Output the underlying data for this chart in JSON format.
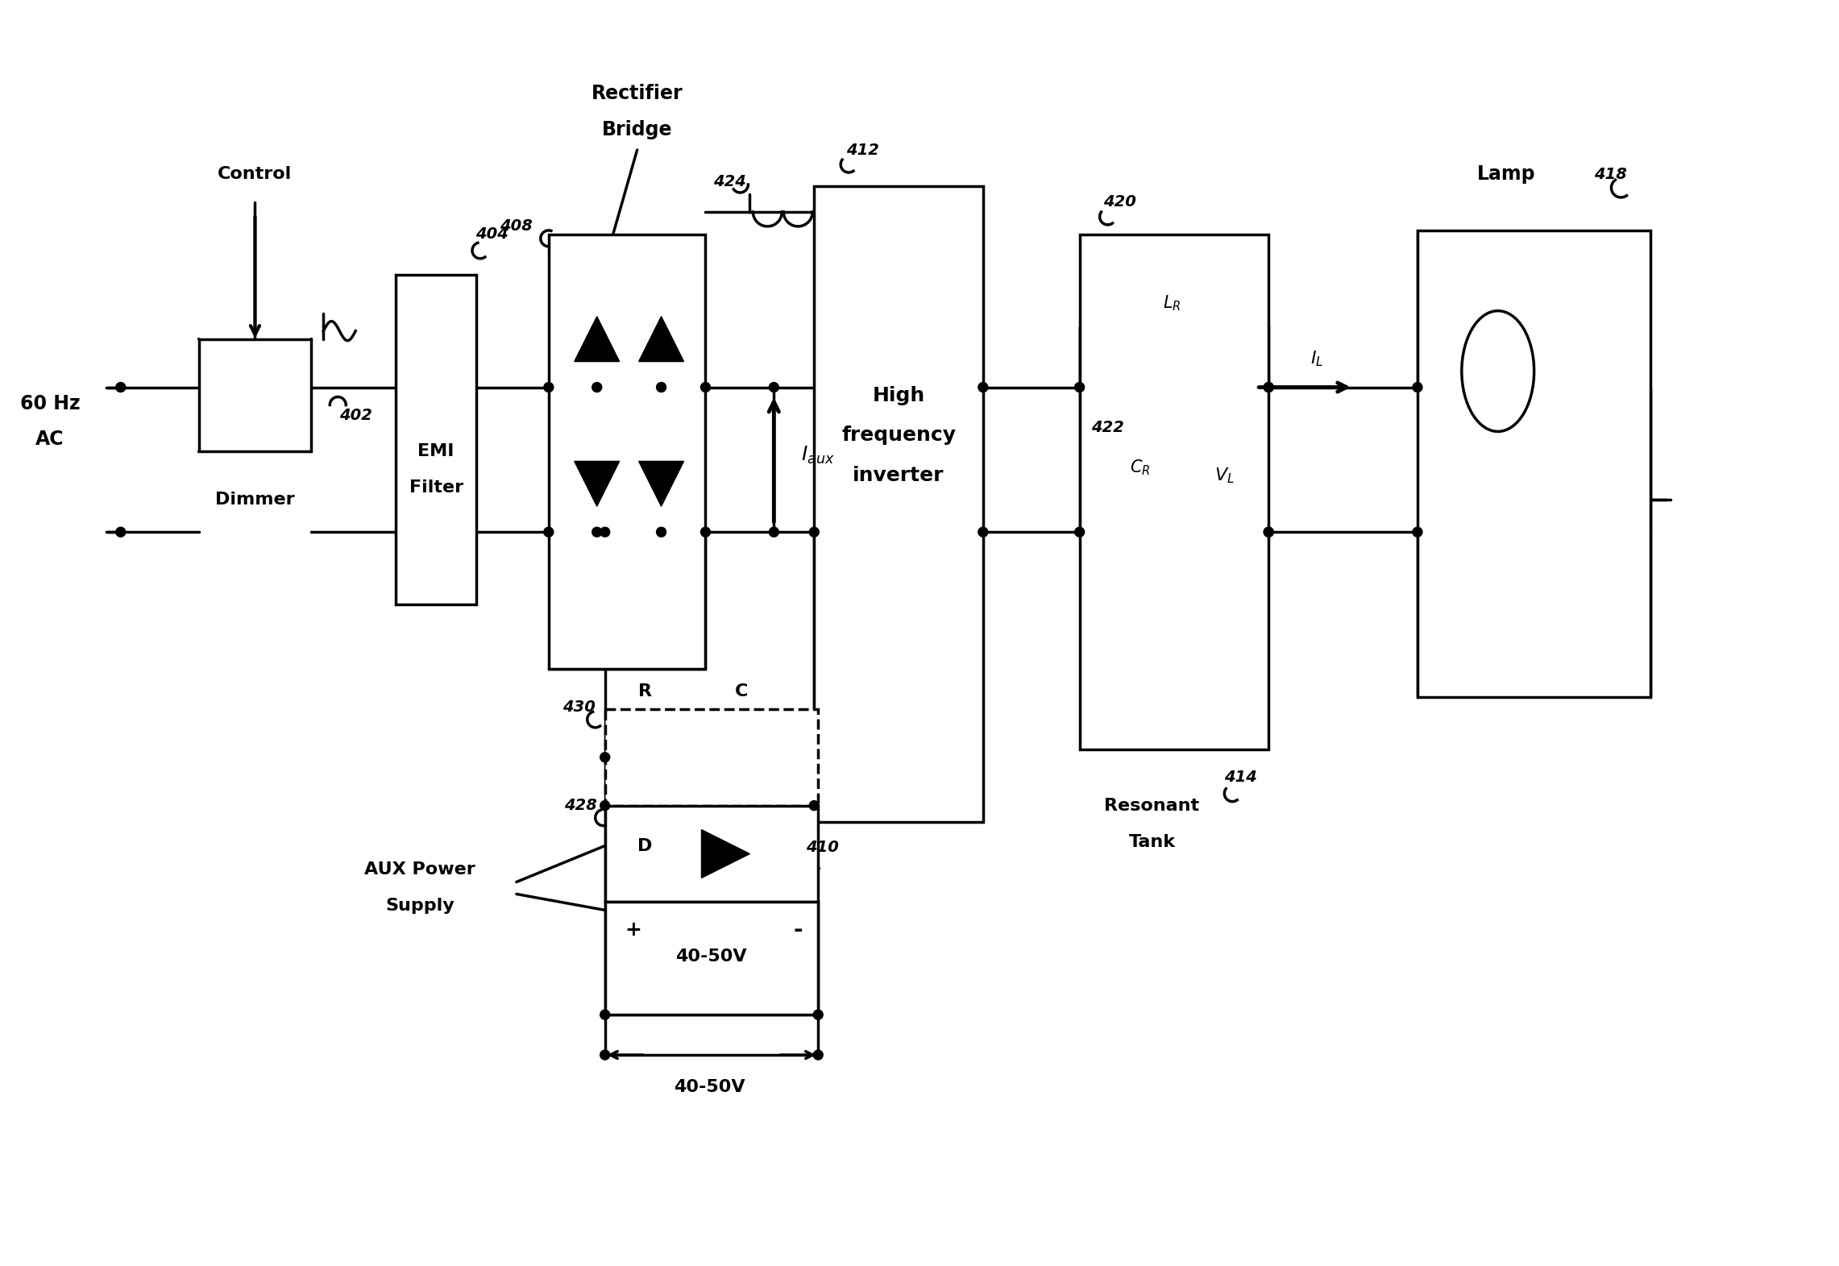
{
  "bg_color": "#ffffff",
  "line_color": "#000000",
  "line_width": 2.5,
  "figsize": [
    22.82,
    15.71
  ],
  "dpi": 100,
  "labels": {
    "control": "Control",
    "dimmer": "Dimmer",
    "emi": [
      "EMI",
      "Filter"
    ],
    "rect_bridge": [
      "Rectifier",
      "Bridge"
    ],
    "hf_inv": [
      "High",
      "frequency",
      "inverter"
    ],
    "res_tank": [
      "Resonant",
      "Tank"
    ],
    "lamp": "Lamp",
    "aux": [
      "AUX Power",
      "Supply"
    ],
    "freq": [
      "60 Hz",
      "AC"
    ],
    "n402": "402",
    "n404": "404",
    "n408": "408",
    "n410": "410",
    "n412": "412",
    "n414": "414",
    "n418": "418",
    "n420": "420",
    "n422": "422",
    "n424": "424",
    "n428": "428",
    "n430": "430",
    "iaux": "$I_{aux}$",
    "il": "$I_L$",
    "lr": "$L_R$",
    "cr": "$C_R$",
    "vl": "$V_L$",
    "voltage": "40-50V",
    "R": "R",
    "C": "C",
    "D": "D"
  }
}
